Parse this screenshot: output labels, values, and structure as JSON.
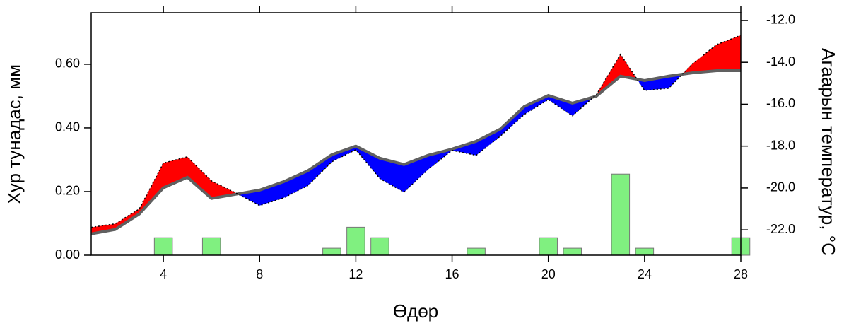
{
  "chart_data": {
    "type": "combo",
    "xlabel": "Өдөр",
    "ylabel": "Хур тунадас, мм",
    "y2label": "Агаарын температур, °C",
    "x": [
      1,
      2,
      3,
      4,
      5,
      6,
      7,
      8,
      9,
      10,
      11,
      12,
      13,
      14,
      15,
      16,
      17,
      18,
      19,
      20,
      21,
      22,
      23,
      24,
      25,
      26,
      27,
      28
    ],
    "xlim": [
      1,
      28
    ],
    "xticks": [
      4,
      8,
      12,
      16,
      20,
      24,
      28
    ],
    "ylim": [
      0,
      0.762
    ],
    "yticks": [
      {
        "value": 0,
        "label": "0.00"
      },
      {
        "value": 0.2,
        "label": "0.20"
      },
      {
        "value": 0.4,
        "label": "0.40"
      },
      {
        "value": 0.6,
        "label": "0.60"
      }
    ],
    "y2lim": [
      -23.21,
      -11.63
    ],
    "y2ticks": [
      {
        "value": -22,
        "label": "-22.0"
      },
      {
        "value": -20,
        "label": "-20.0"
      },
      {
        "value": -18,
        "label": "-18.0"
      },
      {
        "value": -16,
        "label": "-16.0"
      },
      {
        "value": -14,
        "label": "-14.0"
      },
      {
        "value": -12,
        "label": "-12.0"
      }
    ],
    "above_color": "#ff0000",
    "below_color": "#0000ff",
    "series": [
      {
        "type": "bar",
        "axis": "y",
        "color": "#80f080",
        "values": [
          0,
          0,
          0,
          0.055,
          0,
          0.055,
          0,
          0,
          0,
          0,
          0.022,
          0.088,
          0.055,
          0,
          0,
          0,
          0.022,
          0,
          0,
          0.055,
          0.022,
          0,
          0.255,
          0.022,
          0,
          0,
          0,
          0.055
        ]
      },
      {
        "type": "line",
        "axis": "y2",
        "color": "#606060",
        "values": [
          -22.19,
          -21.98,
          -21.24,
          -19.99,
          -19.49,
          -20.5,
          -20.3,
          -20.1,
          -19.7,
          -19.18,
          -18.41,
          -18.0,
          -18.58,
          -18.88,
          -18.44,
          -18.14,
          -17.77,
          -17.19,
          -16.11,
          -15.58,
          -15.95,
          -15.61,
          -14.66,
          -14.87,
          -14.66,
          -14.5,
          -14.4,
          -14.4
        ]
      },
      {
        "type": "line",
        "axis": "y2",
        "color": "#000000",
        "dashed": true,
        "values": [
          -21.88,
          -21.71,
          -21.0,
          -18.81,
          -18.51,
          -19.66,
          -20.23,
          -20.84,
          -20.47,
          -19.89,
          -18.75,
          -18.17,
          -19.55,
          -20.2,
          -19.12,
          -18.2,
          -18.44,
          -17.53,
          -16.49,
          -15.78,
          -16.55,
          -15.54,
          -13.62,
          -15.34,
          -15.24,
          -14.06,
          -13.15,
          -12.71
        ]
      }
    ]
  }
}
